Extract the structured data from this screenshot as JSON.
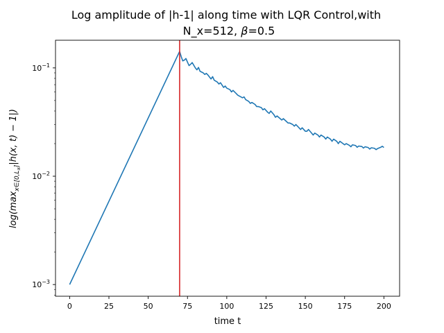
{
  "chart_data": {
    "type": "line",
    "title_line1": "Log amplitude of |h-1| along time with LQR Control,with",
    "title_line2_prefix": "N_x=512, ",
    "title_beta_symbol": "β",
    "title_line2_suffix": "=0.5",
    "xlabel": "time t",
    "ylabel": "log(max",
    "ylabel_sub": "x∈[0,L",
    "ylabel_subsub": "x",
    "ylabel_sub_close": "]",
    "ylabel_rest": "|h(x, t) − 1|)",
    "xscale": "linear",
    "yscale": "log",
    "xlim": [
      -9.0,
      210.0
    ],
    "ylim": [
      0.00078,
      0.18
    ],
    "x_ticks": [
      0,
      25,
      50,
      75,
      100,
      125,
      150,
      175,
      200
    ],
    "x_tick_labels": [
      "0",
      "25",
      "50",
      "75",
      "100",
      "125",
      "150",
      "175",
      "200"
    ],
    "y_ticks": [
      0.001,
      0.01,
      0.1
    ],
    "y_tick_base": "10",
    "y_tick_exponents": [
      "−3",
      "−2",
      "−1"
    ],
    "grid": false,
    "series": [
      {
        "color": "#1f77b4",
        "x": [
          0,
          70,
          71,
          72,
          73,
          74,
          75,
          76,
          77,
          78,
          80,
          81,
          82,
          83,
          85,
          86,
          87,
          88,
          90,
          91,
          92,
          94,
          95,
          96,
          98,
          99,
          100,
          102,
          103,
          104,
          106,
          107,
          108,
          110,
          111,
          112,
          114,
          115,
          116,
          118,
          119,
          120,
          122,
          123,
          124,
          126,
          127,
          128,
          130,
          131,
          132,
          134,
          135,
          136,
          138,
          139,
          140,
          142,
          143,
          144,
          146,
          147,
          148,
          150,
          151,
          152,
          154,
          155,
          156,
          158,
          159,
          160,
          162,
          163,
          164,
          166,
          167,
          168,
          170,
          171,
          172,
          174,
          175,
          176,
          178,
          179,
          180,
          182,
          183,
          184,
          186,
          187,
          188,
          190,
          191,
          192,
          194,
          195,
          196,
          198,
          199,
          200
        ],
        "y": [
          0.001,
          0.142,
          0.127,
          0.116,
          0.118,
          0.122,
          0.113,
          0.105,
          0.108,
          0.112,
          0.1,
          0.096,
          0.101,
          0.093,
          0.09,
          0.087,
          0.089,
          0.086,
          0.079,
          0.083,
          0.077,
          0.074,
          0.071,
          0.073,
          0.066,
          0.068,
          0.065,
          0.063,
          0.06,
          0.062,
          0.058,
          0.056,
          0.055,
          0.053,
          0.054,
          0.051,
          0.049,
          0.047,
          0.048,
          0.046,
          0.044,
          0.044,
          0.043,
          0.041,
          0.042,
          0.039,
          0.038,
          0.04,
          0.037,
          0.035,
          0.036,
          0.034,
          0.033,
          0.034,
          0.032,
          0.031,
          0.031,
          0.03,
          0.029,
          0.03,
          0.028,
          0.027,
          0.028,
          0.026,
          0.026,
          0.027,
          0.025,
          0.024,
          0.025,
          0.024,
          0.023,
          0.024,
          0.023,
          0.022,
          0.023,
          0.022,
          0.021,
          0.022,
          0.021,
          0.02,
          0.021,
          0.02,
          0.0195,
          0.02,
          0.0193,
          0.0187,
          0.0195,
          0.0192,
          0.0185,
          0.019,
          0.0188,
          0.0182,
          0.0187,
          0.0184,
          0.0178,
          0.0183,
          0.0181,
          0.0176,
          0.018,
          0.0185,
          0.0189,
          0.0184
        ]
      }
    ],
    "vline": {
      "x": 70,
      "color": "#d62728"
    }
  }
}
